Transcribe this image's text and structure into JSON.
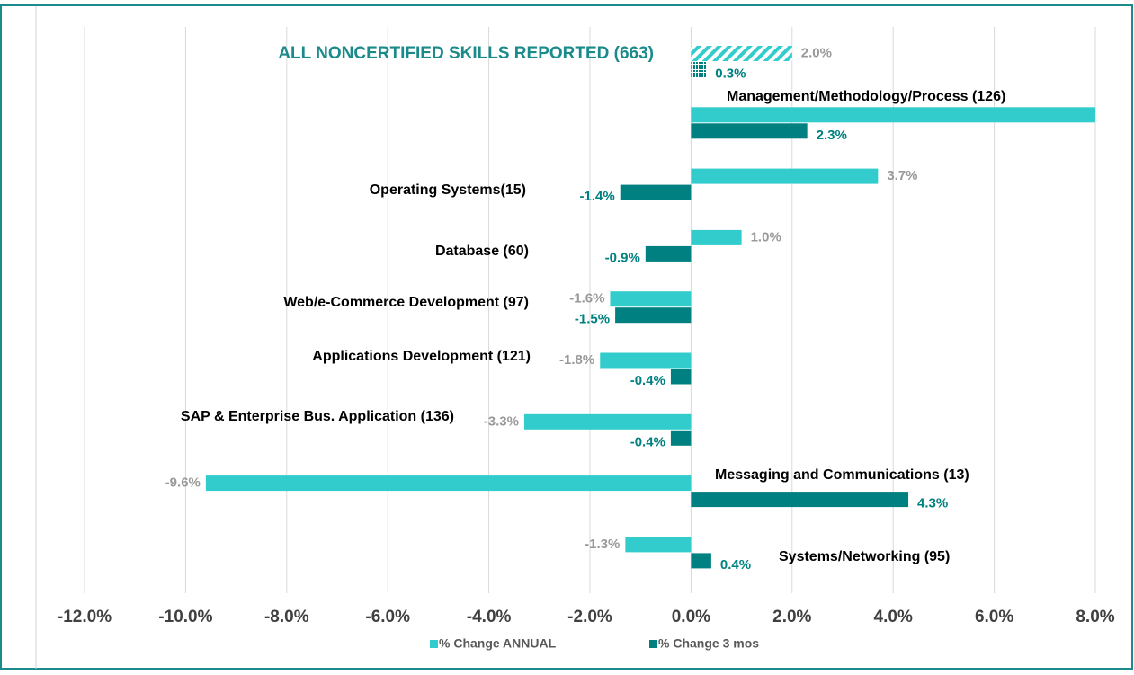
{
  "chart_data": {
    "type": "bar",
    "orientation": "horizontal",
    "categories": [
      "ALL NONCERTIFIED SKILLS REPORTED (663)",
      "Management/Methodology/Process (126)",
      "Operating Systems(15)",
      "Database (60)",
      "Web/e-Commerce Development (97)",
      "Applications Development (121)",
      "SAP & Enterprise Bus. Application (136)",
      "Messaging and Communications (13)",
      "Systems/Networking (95)"
    ],
    "series": [
      {
        "name": "% Change ANNUAL",
        "color": "#33cccc",
        "values": [
          2.0,
          8.0,
          3.7,
          1.0,
          -1.6,
          -1.8,
          -3.3,
          -9.6,
          -1.3
        ],
        "value_labels": [
          "2.0%",
          null,
          "3.7%",
          "1.0%",
          "-1.6%",
          "-1.8%",
          "-3.3%",
          "-9.6%",
          "-1.3%"
        ]
      },
      {
        "name": "% Change 3 mos",
        "color": "#008080",
        "values": [
          0.3,
          2.3,
          -1.4,
          -0.9,
          -1.5,
          -0.4,
          -0.4,
          4.3,
          0.4
        ],
        "value_labels": [
          "0.3%",
          "2.3%",
          "-1.4%",
          "-0.9%",
          "-1.5%",
          "-0.4%",
          "-0.4%",
          "4.3%",
          "0.4%"
        ]
      }
    ],
    "xlim": [
      -12,
      8
    ],
    "xticks": [
      {
        "value": -12,
        "label": "-12.0%"
      },
      {
        "value": -10,
        "label": "-10.0%"
      },
      {
        "value": -8,
        "label": "-8.0%"
      },
      {
        "value": -6,
        "label": "-6.0%"
      },
      {
        "value": -4,
        "label": "-4.0%"
      },
      {
        "value": -2,
        "label": "-2.0%"
      },
      {
        "value": 0,
        "label": "0.0%"
      },
      {
        "value": 2,
        "label": "2.0%"
      },
      {
        "value": 4,
        "label": "4.0%"
      },
      {
        "value": 6,
        "label": "6.0%"
      },
      {
        "value": 8,
        "label": "8.0%"
      }
    ],
    "grid": true,
    "legend": "bottom"
  }
}
